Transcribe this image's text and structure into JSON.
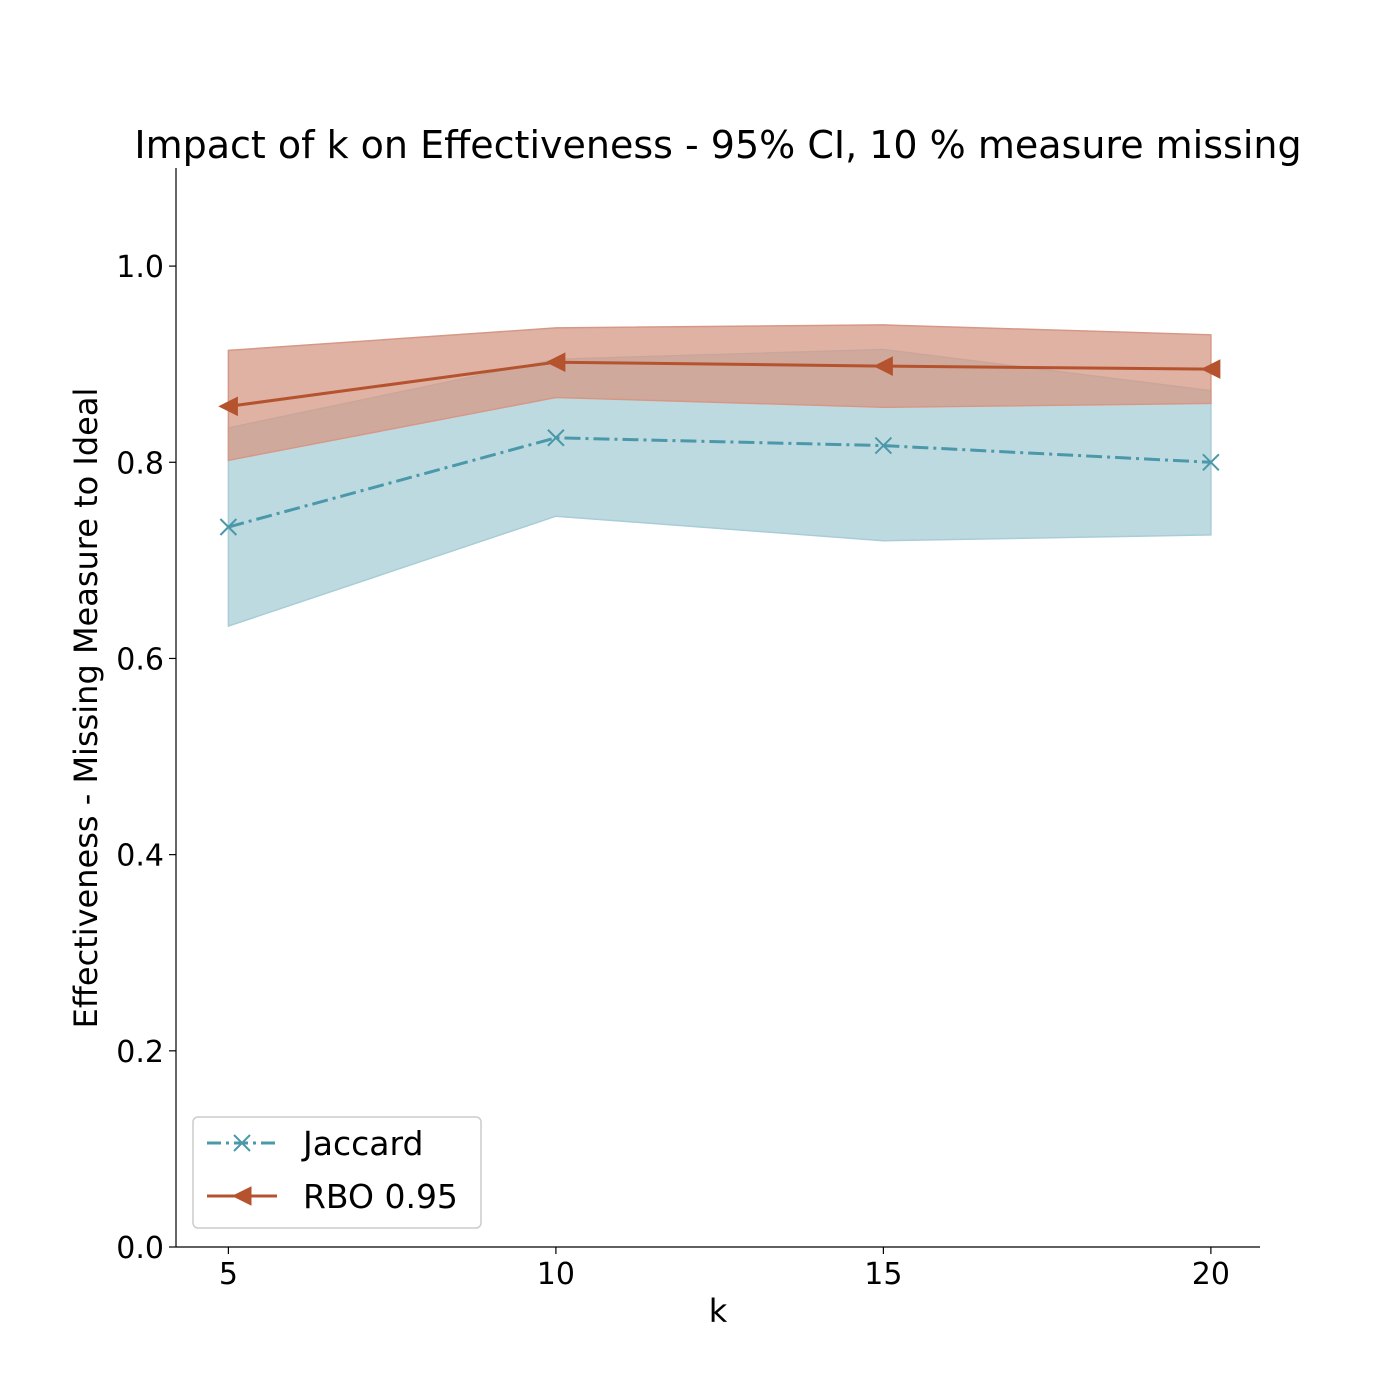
{
  "chart_data": {
    "type": "line",
    "title": "Impact of k on Effectiveness - 95% CI, 10 % measure missing",
    "xlabel": "k",
    "ylabel": "Effectiveness - Missing Measure to Ideal",
    "x": [
      5,
      10,
      15,
      20
    ],
    "xticks": [
      "5",
      "10",
      "15",
      "20"
    ],
    "xlim": [
      4.2,
      20.75
    ],
    "ylim": [
      0.0,
      1.1
    ],
    "yticks": [
      "0.0",
      "0.2",
      "0.4",
      "0.6",
      "0.8",
      "1.0"
    ],
    "grid": false,
    "legend_position": "lower-left",
    "series": [
      {
        "name": "Jaccard",
        "values": [
          0.734,
          0.825,
          0.817,
          0.8
        ],
        "ci_lower": [
          0.633,
          0.745,
          0.72,
          0.726
        ],
        "ci_upper": [
          0.835,
          0.905,
          0.915,
          0.873
        ],
        "color": "#4a98a9",
        "fill_color": "#a8cdd7",
        "marker": "x",
        "line_style": "dash-dot"
      },
      {
        "name": "RBO 0.95",
        "values": [
          0.857,
          0.902,
          0.898,
          0.895
        ],
        "ci_lower": [
          0.802,
          0.866,
          0.856,
          0.86
        ],
        "ci_upper": [
          0.914,
          0.937,
          0.94,
          0.93
        ],
        "color": "#b5532f",
        "fill_color": "#d69886",
        "marker": "triangle-left",
        "line_style": "solid"
      }
    ]
  }
}
